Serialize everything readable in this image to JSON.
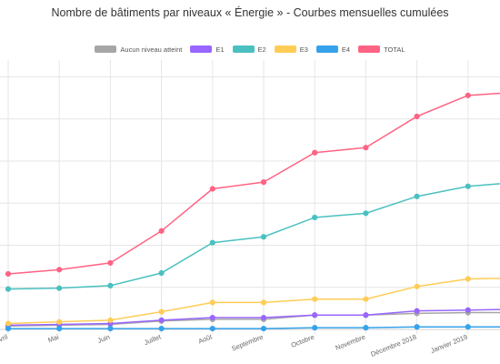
{
  "chart_data": {
    "type": "line",
    "title": "Nombre de bâtiments par niveaux « Énergie » - Courbes mensuelles cumulées",
    "xlabel": "",
    "ylabel": "",
    "legend_position": "top",
    "grid": true,
    "categories": [
      "Avril",
      "Mai",
      "Juin",
      "Juillet",
      "Août",
      "Septembre",
      "Octobre",
      "Novembre",
      "Décembre 2018",
      "Janvier 2019",
      ""
    ],
    "ylim": [
      0,
      320
    ],
    "y_ticks": [
      0,
      50,
      100,
      150,
      200,
      250,
      300
    ],
    "series": [
      {
        "name": "Aucun niveau atteint",
        "color": "#a6a6a6",
        "values": [
          4,
          5,
          6,
          10,
          12,
          12,
          17,
          17,
          19,
          20,
          20
        ]
      },
      {
        "name": "E1",
        "color": "#9966ff",
        "values": [
          5,
          6,
          7,
          11,
          14,
          14,
          17,
          17,
          22,
          23,
          24
        ]
      },
      {
        "name": "E2",
        "color": "#4bc0c0",
        "values": [
          48,
          49,
          52,
          67,
          103,
          110,
          133,
          138,
          158,
          170,
          175
        ]
      },
      {
        "name": "E3",
        "color": "#ffcd56",
        "values": [
          7,
          9,
          11,
          21,
          32,
          32,
          36,
          36,
          51,
          60,
          61
        ]
      },
      {
        "name": "E4",
        "color": "#36a2eb",
        "values": [
          1,
          1,
          1,
          1,
          1,
          1,
          2,
          2,
          3,
          3,
          3
        ]
      },
      {
        "name": "TOTAL",
        "color": "#ff6384",
        "values": [
          66,
          71,
          79,
          117,
          167,
          175,
          210,
          216,
          253,
          278,
          282
        ]
      }
    ]
  }
}
